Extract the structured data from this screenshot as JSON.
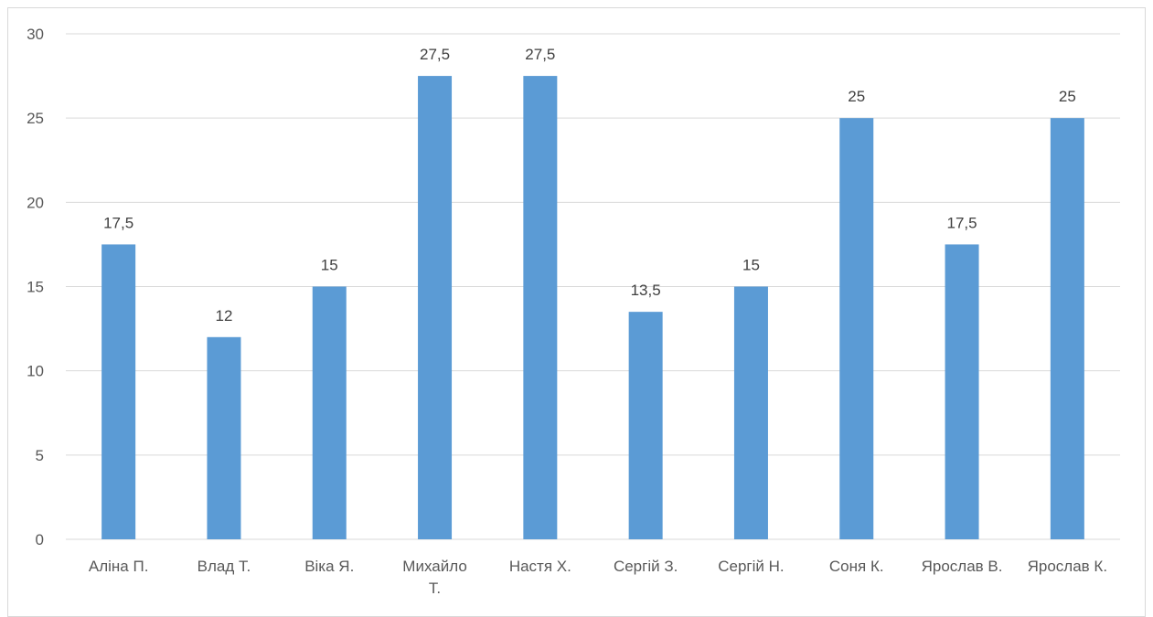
{
  "chart_data": {
    "type": "bar",
    "title": "",
    "xlabel": "",
    "ylabel": "",
    "categories": [
      "Аліна П.",
      "Влад Т.",
      "Віка Я.",
      "Михайло Т.",
      "Настя Х.",
      "Сергій З.",
      "Сергій Н.",
      "Соня К.",
      "Ярослав В.",
      "Ярослав К."
    ],
    "values": [
      17.5,
      12,
      15,
      27.5,
      27.5,
      13.5,
      15,
      25,
      17.5,
      25
    ],
    "data_labels": [
      "17,5",
      "12",
      "15",
      "27,5",
      "27,5",
      "13,5",
      "15",
      "25",
      "17,5",
      "25"
    ],
    "ylim": [
      0,
      30
    ],
    "yticks": [
      0,
      5,
      10,
      15,
      20,
      25,
      30
    ],
    "grid": true,
    "legend": "none",
    "bar_color": "#5b9bd5",
    "grid_color": "#d9d9d9"
  }
}
